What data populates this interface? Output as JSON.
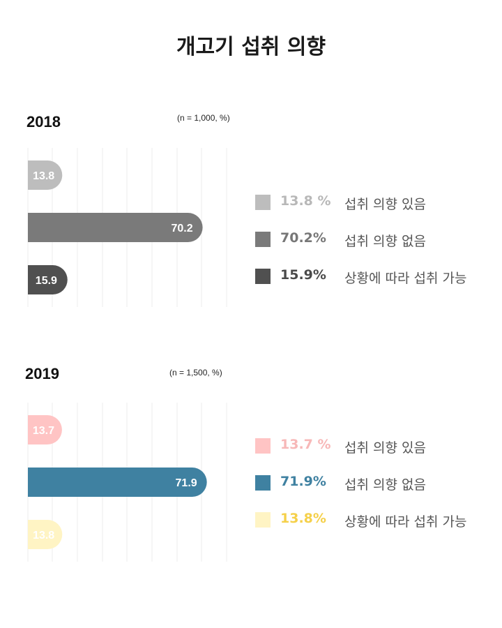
{
  "title": "개고기 섭취 의향",
  "chart_data": [
    {
      "type": "bar",
      "orientation": "horizontal",
      "year": "2018",
      "note": "(n = 1,000, %)",
      "categories": [
        "섭취 의향 있음",
        "섭취 의향 없음",
        "상황에 따라 섭취 가능"
      ],
      "values": [
        13.8,
        70.2,
        15.9
      ],
      "value_labels": [
        "13.8",
        "70.2",
        "15.9"
      ],
      "legend_values": [
        "13.8 %",
        "70.2%",
        "15.9%"
      ],
      "colors": [
        "#bdbdbd",
        "#7a7a7a",
        "#505050"
      ],
      "legend_value_colors": [
        "#b8b8b8",
        "#777777",
        "#4a4a4a"
      ],
      "bar_label_color": "#ffffff",
      "xlim": [
        0,
        80
      ],
      "grid": true,
      "legend_position": "right"
    },
    {
      "type": "bar",
      "orientation": "horizontal",
      "year": "2019",
      "note": "(n = 1,500, %)",
      "categories": [
        "섭취 의향 있음",
        "섭취 의향 없음",
        "상황에 따라 섭취 가능"
      ],
      "values": [
        13.7,
        71.9,
        13.8
      ],
      "value_labels": [
        "13.7",
        "71.9",
        "13.8"
      ],
      "legend_values": [
        "13.7 %",
        "71.9%",
        "13.8%"
      ],
      "colors": [
        "#ffc4c4",
        "#3f81a1",
        "#fff4c4"
      ],
      "legend_value_colors": [
        "#f7b8b8",
        "#3f81a1",
        "#f5d04a"
      ],
      "bar_label_color": "#ffffff",
      "xlim": [
        0,
        80
      ],
      "grid": true,
      "legend_position": "right"
    }
  ]
}
